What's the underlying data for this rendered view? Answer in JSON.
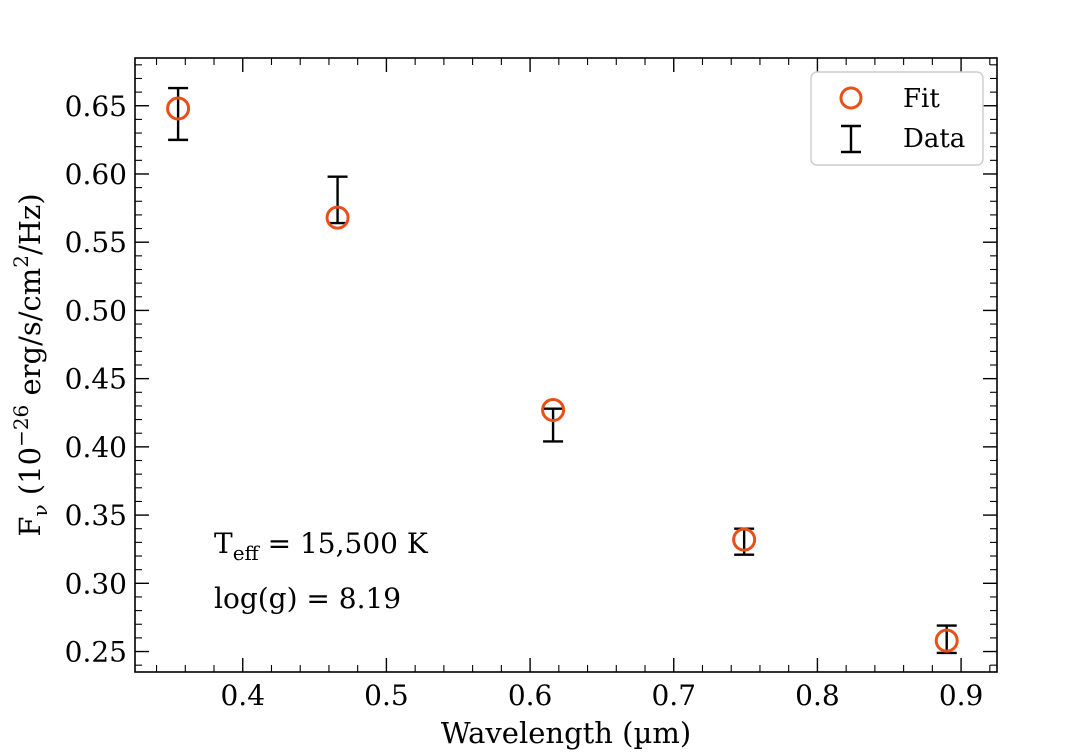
{
  "chart_data": {
    "type": "scatter",
    "xlabel": "Wavelength (µm)",
    "ylabel_parts": {
      "f": "F",
      "f_sub": "ν",
      "mid": " (10",
      "exp": "−26",
      "units": " erg/s/cm",
      "exp2": "2",
      "end": "/Hz)"
    },
    "xlim": [
      0.325,
      0.925
    ],
    "ylim": [
      0.235,
      0.685
    ],
    "x_ticks": [
      0.4,
      0.5,
      0.6,
      0.7,
      0.8,
      0.9
    ],
    "x_tick_labels": [
      "0.4",
      "0.5",
      "0.6",
      "0.7",
      "0.8",
      "0.9"
    ],
    "y_ticks": [
      0.25,
      0.3,
      0.35,
      0.4,
      0.45,
      0.5,
      0.55,
      0.6,
      0.65
    ],
    "y_tick_labels": [
      "0.25",
      "0.30",
      "0.35",
      "0.40",
      "0.45",
      "0.50",
      "0.55",
      "0.60",
      "0.65"
    ],
    "x_minor_step": 0.02,
    "y_minor_step": 0.01,
    "grid": false,
    "legend_placement": "top-right",
    "series": [
      {
        "name": "Fit",
        "marker": "open-circle",
        "color": "#e8501a",
        "x": [
          0.355,
          0.466,
          0.616,
          0.749,
          0.89
        ],
        "y": [
          0.648,
          0.568,
          0.427,
          0.332,
          0.258
        ]
      },
      {
        "name": "Data",
        "marker": "errorbar",
        "color": "#000000",
        "x": [
          0.355,
          0.466,
          0.616,
          0.749,
          0.89
        ],
        "y_low": [
          0.625,
          0.564,
          0.404,
          0.321,
          0.249
        ],
        "y_high": [
          0.663,
          0.598,
          0.428,
          0.34,
          0.269
        ]
      }
    ],
    "annotations": {
      "teff_main": "T",
      "teff_sub": "eff",
      "teff_value": " = 15,500 K",
      "logg": "log(g) = 8.19"
    }
  }
}
